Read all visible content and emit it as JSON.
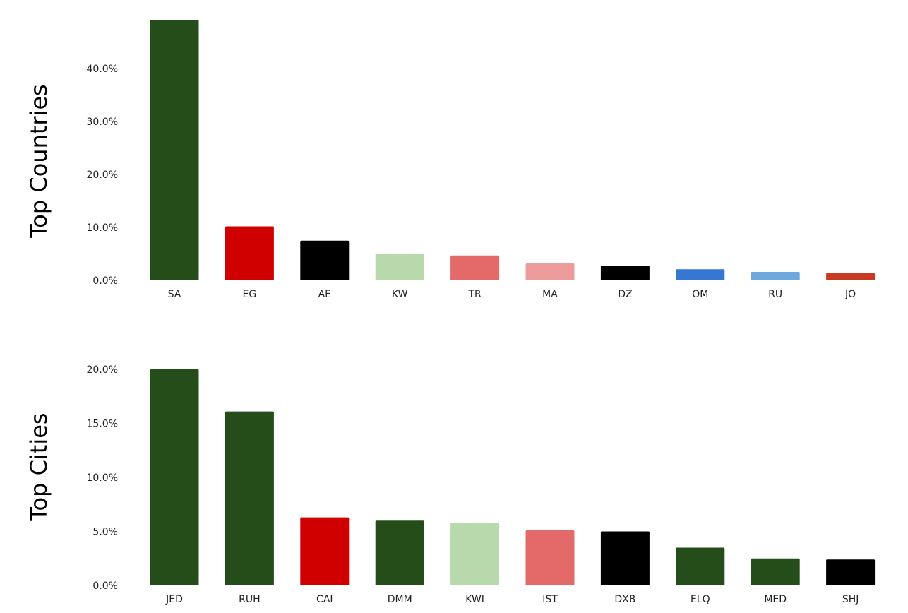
{
  "chart_data": [
    {
      "type": "bar",
      "title": "",
      "xlabel": "",
      "ylabel": "Top Countries",
      "categories": [
        "SA",
        "EG",
        "AE",
        "KW",
        "TR",
        "MA",
        "DZ",
        "OM",
        "RU",
        "JO"
      ],
      "values": [
        49.2,
        10.2,
        7.5,
        5.0,
        4.7,
        3.2,
        2.8,
        2.1,
        1.6,
        1.4
      ],
      "colors": [
        "#254d19",
        "#d10000",
        "#000000",
        "#b8d9ab",
        "#e36a69",
        "#ed9b9b",
        "#000000",
        "#3577d3",
        "#6fa8db",
        "#c93a22"
      ],
      "yticks": [
        "0.0%",
        "10.0%",
        "20.0%",
        "30.0%",
        "40.0%"
      ],
      "ylim": [
        0,
        49.2
      ],
      "grid": false,
      "legend": "none"
    },
    {
      "type": "bar",
      "title": "",
      "xlabel": "",
      "ylabel": "Top Cities",
      "categories": [
        "JED",
        "RUH",
        "CAI",
        "DMM",
        "KWI",
        "IST",
        "DXB",
        "ELQ",
        "MED",
        "SHJ"
      ],
      "values": [
        20.0,
        16.1,
        6.3,
        6.0,
        5.8,
        5.1,
        5.0,
        3.5,
        2.5,
        2.4
      ],
      "colors": [
        "#254d19",
        "#254d19",
        "#d10000",
        "#254d19",
        "#b8d9ab",
        "#e36a69",
        "#000000",
        "#254d19",
        "#254d19",
        "#000000"
      ],
      "yticks": [
        "0.0%",
        "5.0%",
        "10.0%",
        "15.0%",
        "20.0%"
      ],
      "ylim": [
        0,
        20.0
      ],
      "grid": false,
      "legend": "none"
    }
  ]
}
